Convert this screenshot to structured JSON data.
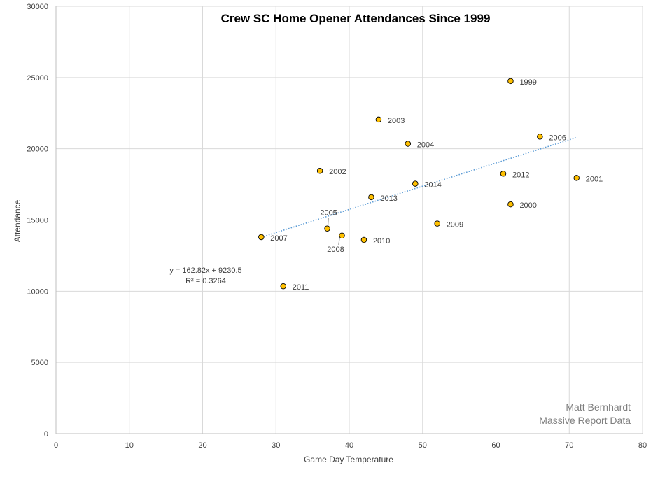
{
  "chart_data": {
    "type": "scatter",
    "title": "Crew SC Home Opener Attendances Since 1999",
    "xlabel": "Game Day Temperature",
    "ylabel": "Attendance",
    "xlim": [
      0,
      80
    ],
    "ylim": [
      0,
      30000
    ],
    "x_ticks": [
      "0",
      "10",
      "20",
      "30",
      "40",
      "50",
      "60",
      "70",
      "80"
    ],
    "y_ticks": [
      "0",
      "5000",
      "10000",
      "15000",
      "20000",
      "25000",
      "30000"
    ],
    "grid": true,
    "points": [
      {
        "label": "1999",
        "x": 62,
        "y": 24750
      },
      {
        "label": "2000",
        "x": 62,
        "y": 16100
      },
      {
        "label": "2001",
        "x": 71,
        "y": 17950
      },
      {
        "label": "2002",
        "x": 36,
        "y": 18450
      },
      {
        "label": "2003",
        "x": 44,
        "y": 22050
      },
      {
        "label": "2004",
        "x": 48,
        "y": 20350
      },
      {
        "label": "2005",
        "x": 37,
        "y": 14400
      },
      {
        "label": "2006",
        "x": 66,
        "y": 20850
      },
      {
        "label": "2007",
        "x": 28,
        "y": 13800
      },
      {
        "label": "2008",
        "x": 39,
        "y": 13900
      },
      {
        "label": "2009",
        "x": 52,
        "y": 14750
      },
      {
        "label": "2010",
        "x": 42,
        "y": 13600
      },
      {
        "label": "2011",
        "x": 31,
        "y": 10350
      },
      {
        "label": "2012",
        "x": 61,
        "y": 18250
      },
      {
        "label": "2013",
        "x": 43,
        "y": 16600
      },
      {
        "label": "2014",
        "x": 49,
        "y": 17550
      }
    ],
    "point_color": "#FFC000",
    "point_edge_color": "#000000",
    "trendline": {
      "x_range": [
        28,
        71
      ],
      "slope": 162.82,
      "intercept": 9230.5,
      "equation": "y = 162.82x + 9230.5",
      "r_squared": "R² = 0.3264",
      "color": "#5B9BD5"
    },
    "credits": [
      "Matt Bernhardt",
      "Massive Report Data"
    ]
  }
}
